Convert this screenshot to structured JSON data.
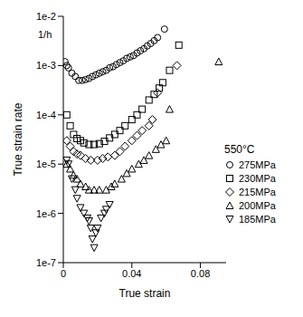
{
  "chart_data": {
    "type": "scatter",
    "x_label": "True strain",
    "y_label": "True strain rate",
    "annotation": "1/h",
    "legend_title": "550°C",
    "legend": "right",
    "log": "y",
    "grid": false,
    "xlim": [
      0,
      0.095
    ],
    "xticks": [
      0,
      0.04,
      0.08
    ],
    "ylim": [
      1e-07,
      0.01
    ],
    "yticks": [
      {
        "value": 1e-07,
        "label": "1e-7"
      },
      {
        "value": 1e-06,
        "label": "1e-6"
      },
      {
        "value": 1e-05,
        "label": "1e-5"
      },
      {
        "value": 0.0001,
        "label": "1e-4"
      },
      {
        "value": 0.001,
        "label": "1e-3"
      },
      {
        "value": 0.01,
        "label": "1e-2"
      }
    ],
    "series": [
      {
        "name": "275MPa",
        "marker": "circle",
        "color": "#000000",
        "x": [
          0.001,
          0.002,
          0.003,
          0.005,
          0.007,
          0.009,
          0.011,
          0.013,
          0.015,
          0.017,
          0.019,
          0.021,
          0.023,
          0.025,
          0.027,
          0.029,
          0.031,
          0.033,
          0.035,
          0.037,
          0.039,
          0.041,
          0.043,
          0.045,
          0.047,
          0.049,
          0.051,
          0.053,
          0.055,
          0.059
        ],
        "values": [
          0.0012,
          0.001,
          0.0009,
          0.0007,
          0.0006,
          0.0005,
          0.0005,
          0.00052,
          0.00055,
          0.0006,
          0.00065,
          0.0007,
          0.00075,
          0.0008,
          0.0009,
          0.00095,
          0.00105,
          0.00115,
          0.00125,
          0.0014,
          0.0015,
          0.0016,
          0.0018,
          0.002,
          0.0022,
          0.0025,
          0.0028,
          0.0032,
          0.0037,
          0.0055
        ]
      },
      {
        "name": "230MPa",
        "marker": "square",
        "color": "#000000",
        "x": [
          0.002,
          0.004,
          0.006,
          0.008,
          0.01,
          0.012,
          0.015,
          0.018,
          0.021,
          0.024,
          0.027,
          0.03,
          0.033,
          0.036,
          0.04,
          0.043,
          0.046,
          0.05,
          0.053,
          0.056,
          0.058,
          0.062,
          0.0674
        ],
        "values": [
          0.0001,
          6e-05,
          4e-05,
          3.3e-05,
          3e-05,
          2.7e-05,
          2.5e-05,
          2.5e-05,
          2.6e-05,
          2.9e-05,
          3.4e-05,
          4e-05,
          4.8e-05,
          6e-05,
          8e-05,
          0.0001,
          0.00013,
          0.0002,
          0.00026,
          0.00035,
          0.00045,
          0.0008,
          0.0026
        ]
      },
      {
        "name": "215MPa",
        "marker": "diamond",
        "color": "#000000",
        "x": [
          0.002,
          0.004,
          0.006,
          0.008,
          0.01,
          0.013,
          0.016,
          0.02,
          0.023,
          0.026,
          0.03,
          0.033,
          0.036,
          0.04,
          0.043,
          0.046,
          0.05,
          0.052,
          0.055,
          0.0663
        ],
        "values": [
          3e-05,
          2.3e-05,
          1.8e-05,
          1.6e-05,
          1.5e-05,
          1.3e-05,
          1.2e-05,
          1.2e-05,
          1.3e-05,
          1.4e-05,
          1.5e-05,
          1.8e-05,
          2.3e-05,
          3e-05,
          3.8e-05,
          4.8e-05,
          6e-05,
          8e-05,
          0.00028,
          0.001
        ]
      },
      {
        "name": "200MPa",
        "marker": "triangle",
        "color": "#000000",
        "x": [
          0.002,
          0.004,
          0.006,
          0.008,
          0.01,
          0.013,
          0.015,
          0.018,
          0.021,
          0.025,
          0.028,
          0.03,
          0.034,
          0.037,
          0.04,
          0.044,
          0.047,
          0.05,
          0.054,
          0.057,
          0.06,
          0.062,
          0.0907
        ],
        "values": [
          1e-05,
          8e-06,
          6e-06,
          5e-06,
          4e-06,
          3.5e-06,
          3e-06,
          3e-06,
          3e-06,
          3e-06,
          3.5e-06,
          4e-06,
          5e-06,
          6.5e-06,
          8e-06,
          1e-05,
          1.2e-05,
          1.5e-05,
          2e-05,
          2.5e-05,
          3e-05,
          0.00013,
          0.0012
        ]
      },
      {
        "name": "185MPa",
        "marker": "triangle-down",
        "color": "#000000",
        "x": [
          0.002,
          0.003,
          0.005,
          0.007,
          0.008,
          0.01,
          0.012,
          0.014,
          0.015,
          0.016,
          0.017,
          0.018,
          0.019,
          0.02,
          0.022,
          0.024,
          0.025,
          0.027
        ],
        "values": [
          1.2e-05,
          1e-05,
          5e-06,
          3e-06,
          2e-06,
          1.3e-06,
          1e-06,
          8e-07,
          7e-07,
          5e-07,
          3e-07,
          2e-07,
          4e-07,
          5e-07,
          8e-07,
          1e-06,
          1.2e-06,
          1.5e-06
        ]
      }
    ]
  }
}
